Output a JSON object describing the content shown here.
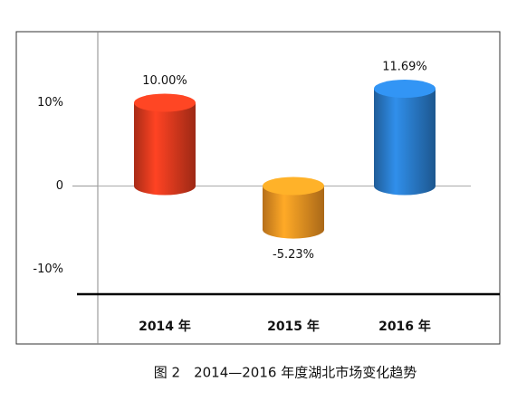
{
  "chart_data": {
    "type": "bar",
    "categories": [
      "2014 年",
      "2015 年",
      "2016 年"
    ],
    "values": [
      10.0,
      -5.23,
      11.69
    ],
    "value_labels": [
      "10.00%",
      "-5.23%",
      "11.69%"
    ],
    "colors": [
      "#e03a1e",
      "#f39422",
      "#2a7ccc"
    ],
    "ylim": [
      -13,
      18
    ],
    "yticks": [
      {
        "value": 10,
        "label": "10%"
      },
      0,
      {
        "value": -10,
        "label": "-10%"
      }
    ],
    "caption": "图 2　2014—2016 年度湖北市场变化趋势"
  }
}
